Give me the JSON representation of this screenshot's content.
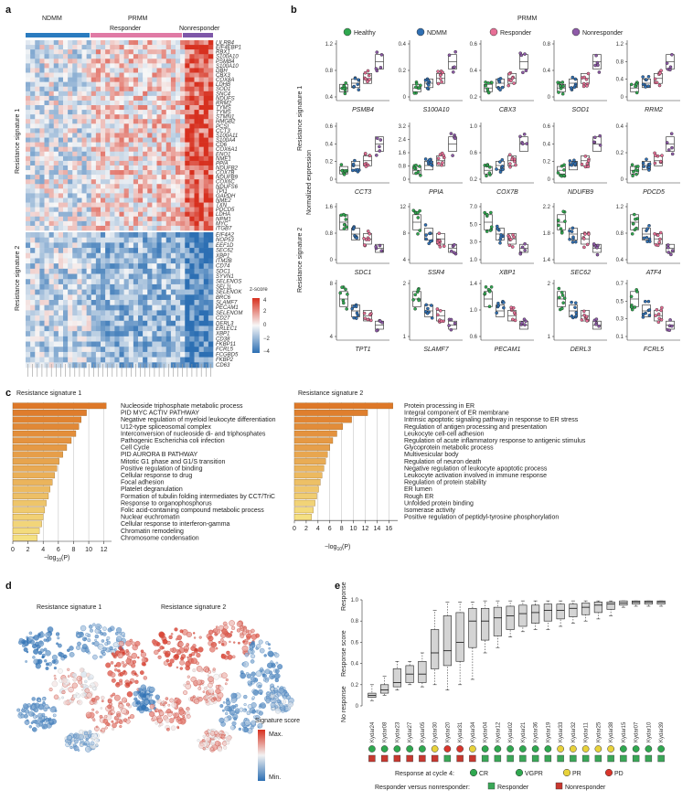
{
  "panels": {
    "a": "a",
    "b": "b",
    "c": "c",
    "d": "d",
    "e": "e"
  },
  "panel_a": {
    "groups": {
      "ndmm": "NDMM",
      "prmm": "PRMM",
      "responder": "Responder",
      "nonresponder": "Nonresponder"
    },
    "sig1_label": "Resistance signature 1",
    "sig2_label": "Resistance signature 2",
    "zscore_label": "z-score",
    "zscore_ticks": [
      "4",
      "2",
      "0",
      "−2",
      "−4"
    ],
    "colors": {
      "ndmm": "#2a7bbf",
      "responder": "#e07aa5",
      "nonresponder": "#7e57a8",
      "high": "#d7301f",
      "low": "#2c6fb3"
    },
    "genes_sig1": [
      "LILRB4",
      "EIF4EBP1",
      "RBX1",
      "S100A10",
      "PSMB4",
      "S100A10",
      "DBH",
      "CBX3",
      "COX8A",
      "LDHB",
      "SOD1",
      "SNC4",
      "NDUFS",
      "RRM2",
      "TYMS",
      "TYMS",
      "STMN1",
      "HMGB2",
      "PCSI",
      "CCT3",
      "S100A11",
      "S100A4",
      "CD6",
      "COX6A1",
      "ENO1",
      "NME1",
      "PPIA",
      "NDUFB2",
      "COX7B",
      "NDUFB9",
      "COX6C",
      "NDUFS6",
      "TPI1",
      "GAPDH",
      "NME2",
      "TXN",
      "PDCD5",
      "LDHA",
      "NPM1",
      "MYC",
      "ITGB7"
    ],
    "genes_sig2": [
      "EIF4A2",
      "NOP53",
      "EEF1D",
      "SEC62",
      "XBP1",
      "ITM2B",
      "CD74",
      "SDC1",
      "SYVN1",
      "SELENOS",
      "SEL1L",
      "SELENOK",
      "BRC6",
      "SLAMF7",
      "PECAM1",
      "SELENOM",
      "CD27",
      "DERL3",
      "ERLEC1",
      "XBP1",
      "CD38",
      "FKBP11",
      "FCRL5",
      "FCGBD5",
      "FKBP2",
      "CD63"
    ]
  },
  "panel_b": {
    "prmm": "PRMM",
    "legend": [
      "Healthy",
      "NDMM",
      "Responder",
      "Nonresponder"
    ],
    "legend_colors": [
      "#2fa84f",
      "#2f6fb3",
      "#e76f96",
      "#8e5aa8"
    ],
    "ylabel": "Normalized expression",
    "row_labels": [
      "Resistance signature 1",
      "Resistance signature 2"
    ],
    "plots": [
      {
        "gene": "PSMB4",
        "yticks": [
          "1.2",
          "0.8",
          "0.4"
        ]
      },
      {
        "gene": "S100A10",
        "yticks": [
          "0.4",
          "0.2",
          "0"
        ]
      },
      {
        "gene": "CBX3",
        "yticks": [
          "0.6",
          "0.4",
          "0.2"
        ]
      },
      {
        "gene": "SOD1",
        "yticks": [
          "0.8",
          "0.4",
          "0"
        ]
      },
      {
        "gene": "RRM2",
        "yticks": [
          "1.2",
          "0.8",
          "0.4",
          "0"
        ]
      },
      {
        "gene": "CCT3",
        "yticks": [
          "0.6",
          "0.4",
          "0.2",
          "0"
        ]
      },
      {
        "gene": "PPIA",
        "yticks": [
          "3.2",
          "2.4",
          "1.6",
          "0.8",
          "0"
        ]
      },
      {
        "gene": "COX7B",
        "yticks": [
          "1.0",
          "0.6",
          "0.2"
        ]
      },
      {
        "gene": "NDUFB9",
        "yticks": [
          "0.6",
          "0.4",
          "0.2",
          "0"
        ]
      },
      {
        "gene": "PDCD5",
        "yticks": [
          "0.4",
          "0.2",
          "0"
        ]
      },
      {
        "gene": "SDC1",
        "yticks": [
          "1.6",
          "0.8",
          "0"
        ]
      },
      {
        "gene": "SSR4",
        "yticks": [
          "12",
          "8",
          "4"
        ]
      },
      {
        "gene": "XBP1",
        "yticks": [
          "7.0",
          "5.0",
          "3.0",
          "1.0"
        ]
      },
      {
        "gene": "SEC62",
        "yticks": [
          "2.2",
          "1.8",
          "1.4"
        ]
      },
      {
        "gene": "ATF4",
        "yticks": [
          "1.2",
          "0.8",
          "0.4"
        ]
      },
      {
        "gene": "TPT1",
        "yticks": [
          "8",
          "4"
        ]
      },
      {
        "gene": "SLAMF7",
        "yticks": [
          "2",
          "1"
        ]
      },
      {
        "gene": "PECAM1",
        "yticks": [
          "1.4",
          "1.0",
          "0.6"
        ]
      },
      {
        "gene": "DERL3",
        "yticks": [
          "2",
          "1"
        ]
      },
      {
        "gene": "FCRL5",
        "yticks": [
          "0.7",
          "0.5",
          "0.3",
          "0.1"
        ]
      }
    ]
  },
  "panel_c": {
    "sig1": {
      "title": "Resistance signature 1",
      "terms": [
        "Nucleoside triphosphate metabolic process",
        "PID MYC ACTIV PATHWAY",
        "Negative regulation of myeloid leukocyte differentiation",
        "U12-type spliceosomal complex",
        "Interconversion of nucleoside di- and triphosphates",
        "Pathogenic Escherichia coli infection",
        "Cell Cycle",
        "PID AURORA B PATHWAY",
        "Mitotic G1 phase and G1/S transition",
        "Positive regulation of binding",
        "Cellular response to drug",
        "Focal adhesion",
        "Platelet degranulation",
        "Formation of tubulin folding intermediates by CCT/TriC",
        "Response to organophosphorus",
        "Folic acid-containing compound metabolic process",
        "Nuclear euchromatin",
        "Cellular response to interferon-gamma",
        "Chromatin remodeling",
        "Chromosome condensation"
      ],
      "values": [
        12.3,
        9.7,
        9.0,
        8.7,
        8.3,
        7.7,
        7.1,
        6.6,
        6.1,
        5.8,
        5.5,
        5.2,
        4.9,
        4.7,
        4.4,
        4.2,
        4.0,
        3.8,
        3.5,
        3.2
      ],
      "xticks": [
        "0",
        "2",
        "4",
        "6",
        "8",
        "10",
        "12"
      ],
      "xlim": [
        0,
        13
      ]
    },
    "sig2": {
      "title": "Resistance signature 2",
      "terms": [
        "Protein processing in ER",
        "Integral component of ER membrane",
        "Intrinsic apoptotic signaling pathway in response to ER stress",
        "Regulation of antigen processing and presentation",
        "Leukocyte cell-cell adhesion",
        "Regulation of acute inflammatory response to antigenic stimulus",
        "Glycoprotein metabolic process",
        "Multivesicular body",
        "Regulation of neuron death",
        "Negative regulation of leukocyte apoptotic process",
        "Leukocyte activation involved in immune response",
        "Regulation of protein stability",
        "ER lumen",
        "Rough ER",
        "Unfolded protein binding",
        "Isomerase activity",
        "Positive regulation of peptidyl-tyrosine phosphorylation"
      ],
      "values": [
        16.7,
        12.4,
        9.7,
        8.2,
        7.2,
        6.5,
        6.0,
        5.6,
        5.3,
        5.0,
        4.7,
        4.4,
        4.1,
        3.8,
        3.5,
        3.2,
        2.9
      ],
      "xticks": [
        "0",
        "2",
        "4",
        "6",
        "8",
        "10",
        "12",
        "14",
        "16"
      ],
      "xlim": [
        0,
        17.5
      ]
    },
    "xlabel_pre": "−log",
    "xlabel_sub": "10",
    "xlabel_post": "(P)"
  },
  "panel_d": {
    "titles": [
      "Resistance signature 1",
      "Resistance signature 2"
    ],
    "legend_title": "Signature score",
    "max": "Max.",
    "min": "Min."
  },
  "panel_e": {
    "ylabel_top": "Response",
    "ylabel_mid": "Response score",
    "ylabel_bot": "No response",
    "yticks": [
      "1.0",
      "0.8",
      "0.6",
      "0.4",
      "0.2",
      "0"
    ],
    "chart_data": {
      "type": "boxplot",
      "ylabel": "Response score",
      "ylim": [
        0,
        1
      ],
      "patients": [
        "Kydar24",
        "Kydar08",
        "Kydar23",
        "Kydar27",
        "Kydar05",
        "Kydar30",
        "Kydar20",
        "Kydar31",
        "Kydar34",
        "Kydar04",
        "Kydar12",
        "Kydar02",
        "Kydar21",
        "Kydar36",
        "Kydar19",
        "Kydar33",
        "Kydar32",
        "Kydar11",
        "Kydar25",
        "Kydar38",
        "Kydar15",
        "Kydar07",
        "Kydar10",
        "Kydar39"
      ],
      "q1": [
        0.08,
        0.12,
        0.18,
        0.22,
        0.22,
        0.35,
        0.38,
        0.42,
        0.55,
        0.62,
        0.66,
        0.72,
        0.75,
        0.78,
        0.8,
        0.82,
        0.84,
        0.86,
        0.88,
        0.91,
        0.95,
        0.96,
        0.96,
        0.96
      ],
      "median": [
        0.1,
        0.15,
        0.22,
        0.3,
        0.3,
        0.5,
        0.52,
        0.6,
        0.8,
        0.8,
        0.83,
        0.85,
        0.87,
        0.88,
        0.9,
        0.9,
        0.92,
        0.93,
        0.95,
        0.96,
        0.97,
        0.98,
        0.98,
        0.98
      ],
      "q3": [
        0.12,
        0.2,
        0.35,
        0.38,
        0.42,
        0.72,
        0.85,
        0.88,
        0.92,
        0.92,
        0.93,
        0.94,
        0.95,
        0.95,
        0.96,
        0.96,
        0.96,
        0.97,
        0.98,
        0.98,
        0.99,
        0.99,
        0.99,
        0.99
      ],
      "whisker_low": [
        0.05,
        0.1,
        0.15,
        0.2,
        0.18,
        0.2,
        0.15,
        0.2,
        0.25,
        0.5,
        0.55,
        0.65,
        0.7,
        0.72,
        0.72,
        0.75,
        0.78,
        0.8,
        0.82,
        0.85,
        0.93,
        0.94,
        0.94,
        0.94
      ],
      "whisker_high": [
        0.2,
        0.28,
        0.42,
        0.42,
        0.5,
        0.9,
        0.98,
        0.98,
        0.98,
        0.99,
        0.99,
        0.99,
        0.99,
        0.99,
        0.99,
        0.99,
        0.99,
        0.99,
        0.99,
        0.99,
        0.99,
        0.99,
        0.99,
        0.99
      ],
      "response_cycle4": [
        "CR",
        "VGPR",
        "VGPR",
        "VGPR",
        "VGPR",
        "PR",
        "PD",
        "PD",
        "PR",
        "CR",
        "VGPR",
        "VGPR",
        "VGPR",
        "VGPR",
        "CR",
        "PR",
        "PR",
        "PR",
        "PR",
        "PR",
        "CR",
        "VGPR",
        "VGPR",
        "VGPR"
      ],
      "responder": [
        "Nonresponder",
        "Nonresponder",
        "Nonresponder",
        "Nonresponder",
        "Nonresponder",
        "Nonresponder",
        "Responder",
        "Nonresponder",
        "Nonresponder",
        "Responder",
        "Responder",
        "Responder",
        "Responder",
        "Responder",
        "Responder",
        "Responder",
        "Responder",
        "Responder",
        "Responder",
        "Responder",
        "Responder",
        "Responder",
        "Responder",
        "Responder"
      ]
    },
    "legend_response_label": "Response at cycle 4:",
    "response_levels": [
      "CR",
      "VGPR",
      "PR",
      "PD"
    ],
    "response_colors": [
      "#2fa84f",
      "#2fa84f",
      "#e8d23a",
      "#d9352b"
    ],
    "legend_responder_label": "Responder versus nonresponder:",
    "responder_levels": [
      "Responder",
      "Nonresponder"
    ],
    "responder_colors": [
      "#3aa757",
      "#c8382f"
    ]
  }
}
